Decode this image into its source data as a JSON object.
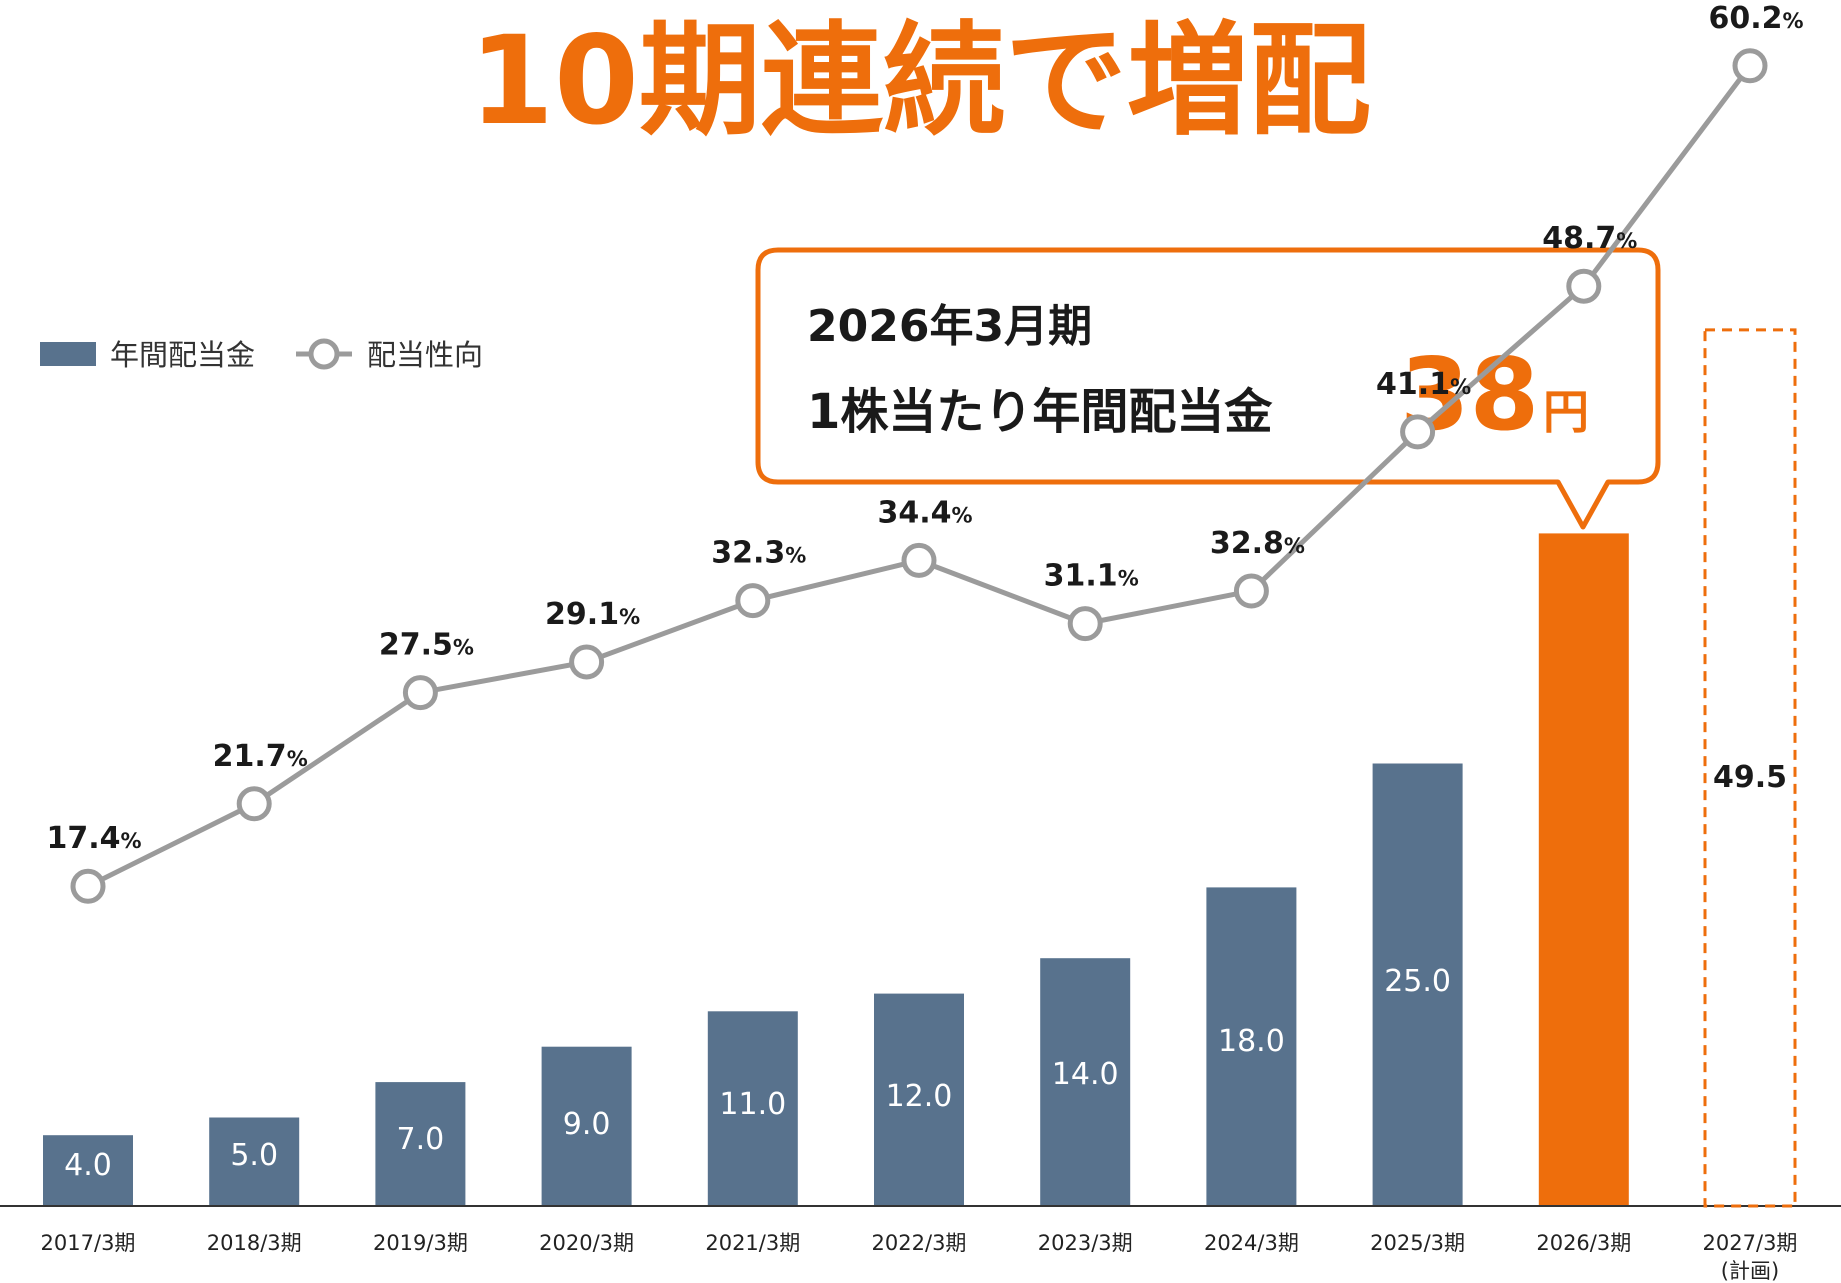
{
  "headline": "10期連続で増配",
  "legend": {
    "dividend_label": "年間配当金",
    "payout_label": "配当性向"
  },
  "callout": {
    "line1": "2026年3月期",
    "line2": "1株当たり年間配当金",
    "amount": "38",
    "unit": "円"
  },
  "colors": {
    "accent": "#ee6e0c",
    "bar": "#58728d",
    "line": "#9b9b9b",
    "text": "#1a1a1a"
  },
  "chart_data": {
    "type": "bar",
    "categories": [
      "2017/3期",
      "2018/3期",
      "2019/3期",
      "2020/3期",
      "2021/3期",
      "2022/3期",
      "2023/3期",
      "2024/3期",
      "2025/3期",
      "2026/3期",
      "2027/3期"
    ],
    "category_notes": [
      "",
      "",
      "",
      "",
      "",
      "",
      "",
      "",
      "",
      "",
      "(計画)"
    ],
    "series": [
      {
        "name": "年間配当金",
        "type": "bar",
        "values": [
          4.0,
          5.0,
          7.0,
          9.0,
          11.0,
          12.0,
          14.0,
          18.0,
          25.0,
          38.0,
          49.5
        ],
        "labels": [
          "4.0",
          "5.0",
          "7.0",
          "9.0",
          "11.0",
          "12.0",
          "14.0",
          "18.0",
          "25.0",
          "",
          "49.5"
        ],
        "highlight_index": 9,
        "plan_index": 10
      },
      {
        "name": "配当性向",
        "type": "line",
        "values": [
          17.4,
          21.7,
          27.5,
          29.1,
          32.3,
          34.4,
          31.1,
          32.8,
          41.1,
          48.7,
          60.2
        ],
        "labels": [
          "17.4",
          "21.7",
          "27.5",
          "29.1",
          "32.3",
          "34.4",
          "31.1",
          "32.8",
          "41.1",
          "48.7",
          "60.2"
        ],
        "unit": "%"
      }
    ],
    "legend_position": "top-left",
    "grid": false
  }
}
